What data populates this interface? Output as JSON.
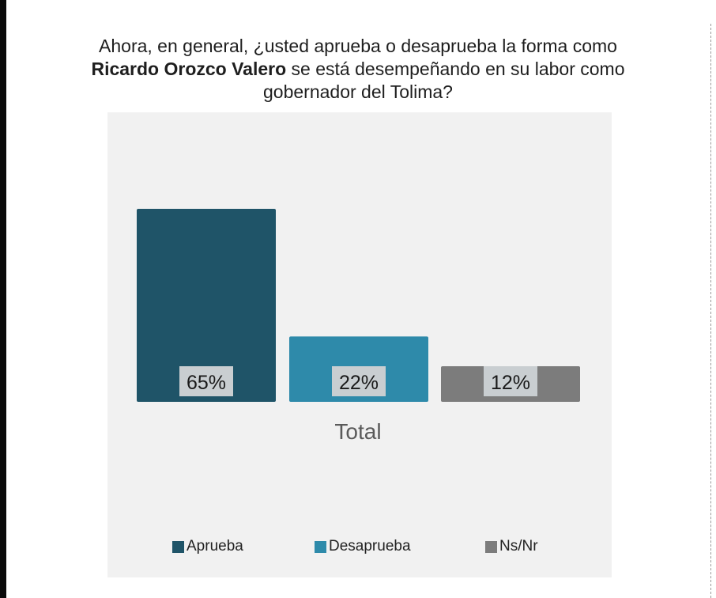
{
  "title": {
    "line1": "Ahora, en general, ¿usted aprueba o desaprueba la forma como",
    "bold": "Ricardo Orozco Valero",
    "line2_rest": " se está desempeñando en su labor como",
    "line3": "gobernador del Tolima?"
  },
  "colors": {
    "panel_bg": "#f1f1f1",
    "label_box": "#c9ced1"
  },
  "chart_data": {
    "type": "bar",
    "title": "Ahora, en general, ¿usted aprueba o desaprueba la forma como Ricardo Orozco Valero se está desempeñando en su labor como gobernador del Tolima?",
    "categories": [
      "Total"
    ],
    "series": [
      {
        "name": "Aprueba",
        "values": [
          65
        ],
        "label": "65%",
        "color": "#1f5468"
      },
      {
        "name": "Desaprueba",
        "values": [
          22
        ],
        "label": "22%",
        "color": "#2e8aaa"
      },
      {
        "name": "Ns/Nr",
        "values": [
          12
        ],
        "label": "12%",
        "color": "#7c7c7c"
      }
    ],
    "ylim": [
      0,
      65
    ],
    "grid": false,
    "legend": "bottom"
  }
}
